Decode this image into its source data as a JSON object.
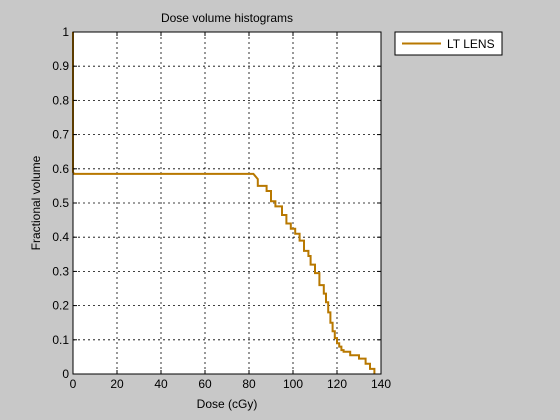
{
  "chart_data": {
    "type": "line",
    "title": "Dose volume histograms",
    "xlabel": "Dose (cGy)",
    "ylabel": "Fractional volume",
    "xlim": [
      0,
      140
    ],
    "ylim": [
      0,
      1
    ],
    "xticks": [
      0,
      20,
      40,
      60,
      80,
      100,
      120,
      140
    ],
    "yticks": [
      0,
      0.1,
      0.2,
      0.3,
      0.4,
      0.5,
      0.6,
      0.7,
      0.8,
      0.9,
      1
    ],
    "grid": true,
    "legend_position": "outside-top-right",
    "series": [
      {
        "name": "LT LENS",
        "color": "#b87800",
        "x": [
          0,
          0,
          0.5,
          82,
          84,
          84,
          88,
          88,
          90,
          90,
          92,
          92,
          95,
          95,
          97,
          97,
          99,
          99,
          101,
          101,
          103,
          103,
          105,
          105,
          107,
          107,
          108,
          108,
          110,
          110,
          112,
          112,
          114,
          114,
          115,
          115,
          116,
          116,
          117,
          117,
          118,
          118,
          119,
          119,
          120,
          120,
          121,
          121,
          122,
          122,
          123,
          123,
          126,
          126,
          130,
          130,
          133,
          133,
          135,
          135,
          137,
          137
        ],
        "y": [
          1,
          0.59,
          0.585,
          0.585,
          0.57,
          0.55,
          0.55,
          0.535,
          0.535,
          0.505,
          0.505,
          0.49,
          0.49,
          0.465,
          0.465,
          0.44,
          0.44,
          0.425,
          0.425,
          0.41,
          0.41,
          0.39,
          0.39,
          0.36,
          0.36,
          0.345,
          0.345,
          0.32,
          0.32,
          0.295,
          0.295,
          0.26,
          0.26,
          0.235,
          0.235,
          0.21,
          0.21,
          0.18,
          0.18,
          0.15,
          0.15,
          0.125,
          0.125,
          0.105,
          0.105,
          0.09,
          0.09,
          0.08,
          0.08,
          0.07,
          0.07,
          0.065,
          0.065,
          0.055,
          0.055,
          0.045,
          0.045,
          0.03,
          0.03,
          0.015,
          0.015,
          0
        ]
      }
    ]
  }
}
